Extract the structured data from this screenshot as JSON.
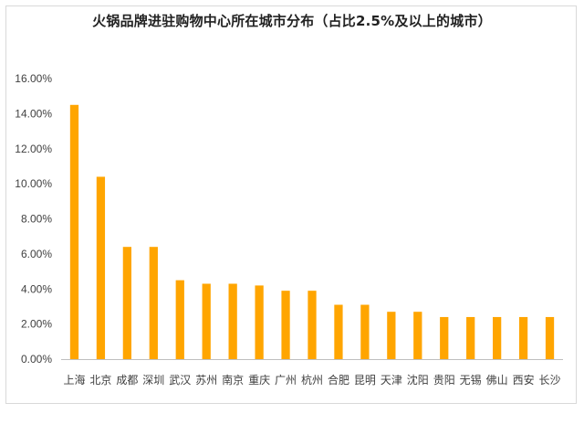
{
  "chart_data": {
    "type": "bar",
    "title": "火锅品牌进驻购物中心所在城市分布（占比2.5%及以上的城市）",
    "xlabel": "",
    "ylabel": "",
    "categories": [
      "上海",
      "北京",
      "成都",
      "深圳",
      "武汉",
      "苏州",
      "南京",
      "重庆",
      "广州",
      "杭州",
      "合肥",
      "昆明",
      "天津",
      "沈阳",
      "贵阳",
      "无锡",
      "佛山",
      "西安",
      "长沙"
    ],
    "values": [
      14.5,
      10.4,
      6.4,
      6.4,
      4.5,
      4.3,
      4.3,
      4.2,
      3.9,
      3.9,
      3.1,
      3.1,
      2.7,
      2.7,
      2.4,
      2.4,
      2.4,
      2.4,
      2.4
    ],
    "ylim": [
      0,
      16
    ],
    "yticks": [
      "0.00%",
      "2.00%",
      "4.00%",
      "6.00%",
      "8.00%",
      "10.00%",
      "12.00%",
      "14.00%",
      "16.00%"
    ],
    "grid": false,
    "legend": "none",
    "bar_color": "#FFA500",
    "axis_color": "#BFBFBF"
  }
}
